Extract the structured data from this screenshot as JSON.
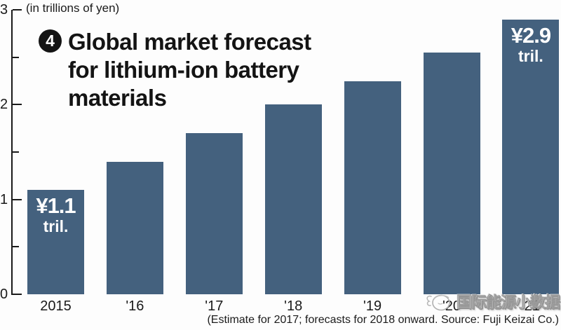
{
  "meta": {
    "units_label": "(in trillions of yen)",
    "caption": "(Estimate for 2017; forecasts for 2018 onward. Source: Fuji Keizai Co.)"
  },
  "title": {
    "badge": "4",
    "text": "Global market forecast\nfor lithium-ion battery\nmaterials"
  },
  "watermark": {
    "text": "国际能源小数据"
  },
  "chart_data": {
    "type": "bar",
    "title": "Global market forecast for lithium-ion battery materials",
    "ylabel": "(in trillions of yen)",
    "categories": [
      "2015",
      "'16",
      "'17",
      "'18",
      "'19",
      "'20",
      "'21"
    ],
    "values": [
      1.1,
      1.4,
      1.7,
      2.0,
      2.25,
      2.55,
      2.9
    ],
    "bar_labels": [
      {
        "index": 0,
        "line1": "¥1.1",
        "line2": "tril."
      },
      {
        "index": 6,
        "line1": "¥2.9",
        "line2": "tril."
      }
    ],
    "ylim": [
      0,
      3
    ],
    "yticks_major": [
      0,
      1,
      2,
      3
    ],
    "yticks_minor": [
      0.5,
      1.5,
      2.5
    ],
    "grid": false,
    "bar_color": "#44617e",
    "bar_label_color": "#ffffff",
    "note": "Estimate for 2017; forecasts for 2018 onward. Source: Fuji Keizai Co."
  }
}
